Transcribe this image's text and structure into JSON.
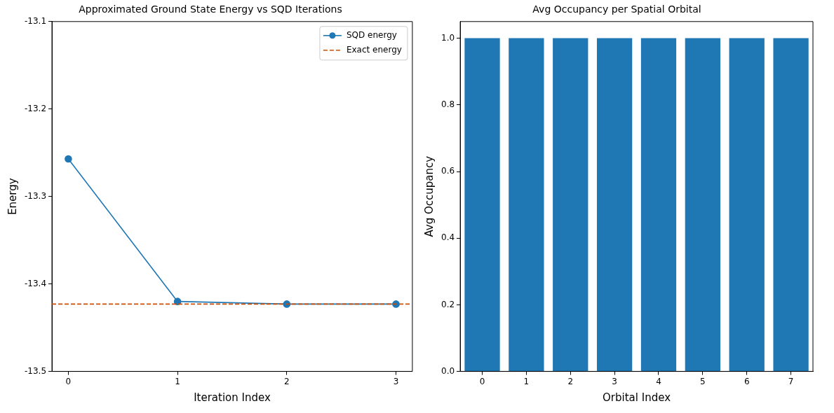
{
  "chart_data": [
    {
      "type": "line",
      "title": "Approximated Ground State Energy vs SQD Iterations",
      "xlabel": "Iteration Index",
      "ylabel": "Energy",
      "x": [
        0,
        1,
        2,
        3
      ],
      "xlim": [
        -0.15,
        3.15
      ],
      "xticks": [
        0,
        1,
        2,
        3
      ],
      "ylim": [
        -13.5,
        -13.1
      ],
      "yticks": [
        -13.1,
        -13.2,
        -13.3,
        -13.4,
        -13.5
      ],
      "marker": "circle",
      "legend": "top right",
      "grid": false,
      "series": [
        {
          "name": "SQD energy",
          "color": "#1f77b4",
          "values": [
            -13.257,
            -13.42,
            -13.423,
            -13.423
          ]
        }
      ],
      "ref_lines": [
        {
          "axis": "y",
          "value": -13.423,
          "label": "Exact energy",
          "color": "#cc4c02",
          "line_style": "dashed"
        }
      ]
    },
    {
      "type": "bar",
      "title": "Avg Occupancy per Spatial Orbital",
      "xlabel": "Orbital Index",
      "ylabel": "Avg Occupancy",
      "categories": [
        "0",
        "1",
        "2",
        "3",
        "4",
        "5",
        "6",
        "7"
      ],
      "ylim": [
        0,
        1.05
      ],
      "yticks": [
        {
          "value": 0,
          "label": "0.0"
        },
        0.2,
        0.4,
        0.6,
        0.8,
        {
          "value": 1,
          "label": "1.0"
        }
      ],
      "grid": false,
      "series": [
        {
          "color": "#1f77b4",
          "values": [
            1,
            1,
            1,
            1,
            1,
            1,
            1,
            1
          ]
        }
      ]
    }
  ]
}
